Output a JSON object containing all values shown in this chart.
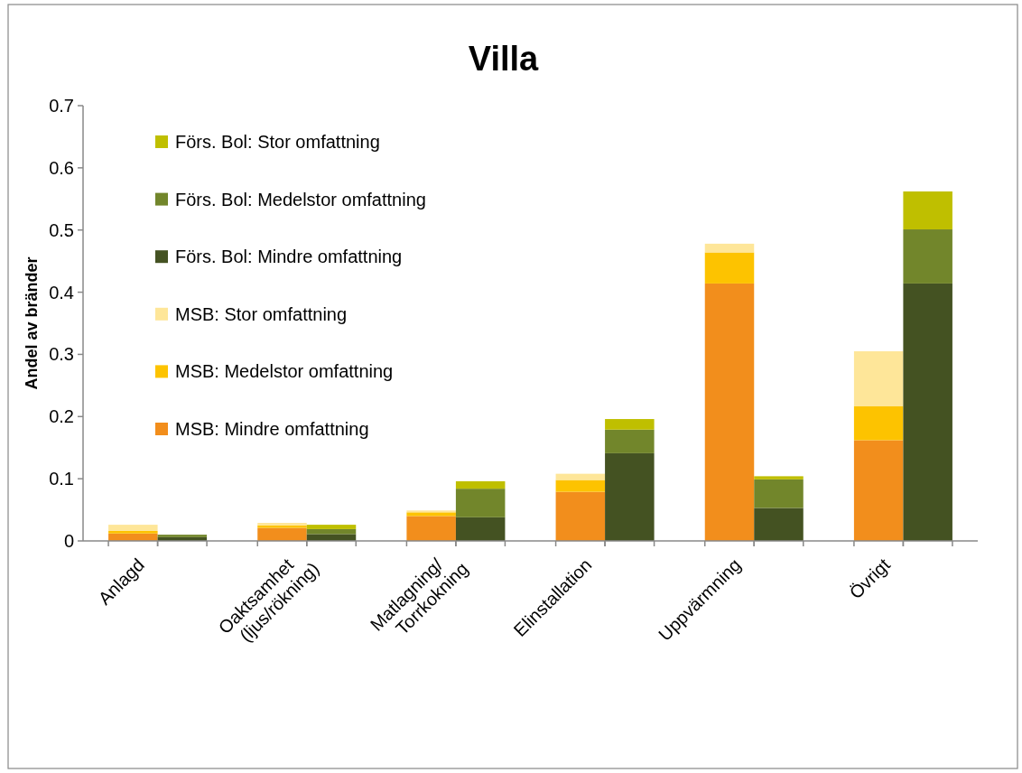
{
  "chart_data": {
    "type": "bar",
    "title": "Villa",
    "ylabel": "Andel av bränder",
    "categories": [
      "Anlagd",
      null,
      "Oaktsamhet (ljus/rökning)",
      null,
      "Matlagning/Torrkokning",
      null,
      "Elinstallation",
      null,
      "Uppvärmning",
      null,
      "Övrigt",
      null
    ],
    "stacked": true,
    "ylim": [
      0,
      0.7
    ],
    "yticks": [
      0,
      0.1,
      0.2,
      0.3,
      0.4,
      0.5,
      0.6,
      0.7
    ],
    "grid": false,
    "legend": "top left",
    "series": [
      {
        "name": "MSB: Mindre omfattning",
        "color": "#f28e1c",
        "values": [
          0.012,
          null,
          0.021,
          null,
          0.04,
          null,
          0.079,
          null,
          0.414,
          null,
          0.162,
          null
        ]
      },
      {
        "name": "MSB: Medelstor omfattning",
        "color": "#fdc300",
        "values": [
          0.004,
          null,
          0.004,
          null,
          0.006,
          null,
          0.019,
          null,
          0.05,
          null,
          0.055,
          null
        ]
      },
      {
        "name": "MSB: Stor omfattning",
        "color": "#fee699",
        "values": [
          0.01,
          null,
          0.004,
          null,
          0.003,
          null,
          0.01,
          null,
          0.014,
          null,
          0.088,
          null
        ]
      },
      {
        "name": "Förs. Bol: Mindre omfattning",
        "color": "#445222",
        "values": [
          null,
          0.006,
          null,
          0.011,
          null,
          0.038,
          null,
          0.141,
          null,
          0.053,
          null,
          0.414
        ]
      },
      {
        "name": "Förs. Bol: Medelstor omfattning",
        "color": "#72862b",
        "values": [
          null,
          0.004,
          null,
          0.008,
          null,
          0.046,
          null,
          0.038,
          null,
          0.046,
          null,
          0.087
        ]
      },
      {
        "name": "Förs. Bol: Stor omfattning",
        "color": "#bfbf00",
        "values": [
          null,
          0,
          null,
          0.007,
          null,
          0.012,
          null,
          0.017,
          null,
          0.005,
          null,
          0.061
        ]
      }
    ]
  }
}
